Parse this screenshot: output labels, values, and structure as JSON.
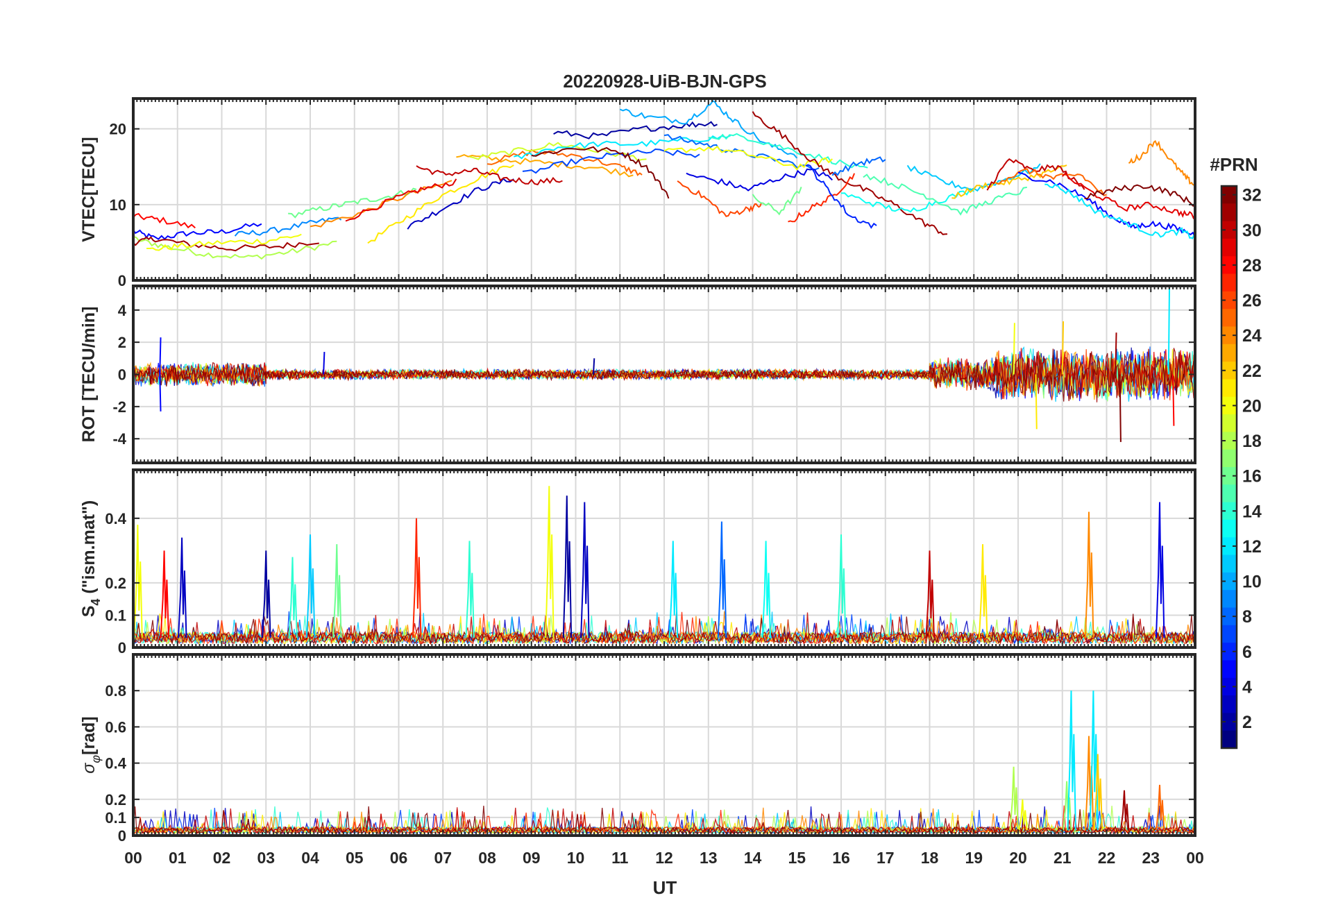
{
  "figure": {
    "title": "20220928-UiB-BJN-GPS",
    "xlabel": "UT",
    "x_tick_labels": [
      "00",
      "01",
      "02",
      "03",
      "04",
      "05",
      "06",
      "07",
      "08",
      "09",
      "10",
      "11",
      "12",
      "13",
      "14",
      "15",
      "16",
      "17",
      "18",
      "19",
      "20",
      "21",
      "22",
      "23",
      "00"
    ]
  },
  "colorbar": {
    "title": "#PRN",
    "range": [
      1,
      32
    ],
    "colormap": "jet",
    "ticks": [
      2,
      4,
      6,
      8,
      10,
      12,
      14,
      16,
      18,
      20,
      22,
      24,
      26,
      28,
      30,
      32
    ]
  },
  "chart_data": [
    {
      "type": "line",
      "panel": "vtec",
      "ylabel": "VTEC[TECU]",
      "xlim": [
        0,
        24
      ],
      "ylim": [
        0,
        24
      ],
      "yticks": [
        0,
        10,
        20
      ],
      "grid": true,
      "series": [
        {
          "prn": 5,
          "x": [
            0,
            0.5,
            1.2,
            2,
            2.9
          ],
          "y": [
            6.5,
            5.5,
            6.2,
            6.4,
            7.5
          ]
        },
        {
          "prn": 18,
          "x": [
            0,
            0.7,
            1.6,
            2.6,
            3.6,
            4.6
          ],
          "y": [
            5.5,
            4.5,
            3.5,
            3.0,
            3.8,
            5.0
          ]
        },
        {
          "prn": 28,
          "x": [
            0,
            0.6,
            1.4
          ],
          "y": [
            8.5,
            8.0,
            7.0
          ]
        },
        {
          "prn": 31,
          "x": [
            0,
            0.5,
            1.3,
            2.2,
            3.3,
            4.2
          ],
          "y": [
            5.0,
            5.5,
            4.7,
            4.2,
            4.5,
            5.2
          ]
        },
        {
          "prn": 20,
          "x": [
            0.3,
            1.0,
            2.0,
            3.0,
            3.8
          ],
          "y": [
            4.0,
            4.5,
            5.0,
            5.2,
            6.0
          ]
        },
        {
          "prn": 9,
          "x": [
            2.3,
            3.1,
            4.0,
            4.7
          ],
          "y": [
            6.0,
            6.5,
            7.5,
            8.3
          ]
        },
        {
          "prn": 16,
          "x": [
            3.5,
            4.3,
            5.0,
            5.7,
            6.4
          ],
          "y": [
            8.5,
            9.5,
            10.3,
            11.0,
            12.0
          ]
        },
        {
          "prn": 24,
          "x": [
            4.0,
            5.2,
            6.3,
            7.2
          ],
          "y": [
            7.0,
            9.0,
            11.5,
            13.0
          ]
        },
        {
          "prn": 29,
          "x": [
            4.8,
            5.8,
            6.5,
            7.3
          ],
          "y": [
            8.0,
            10.5,
            12.0,
            13.0
          ]
        },
        {
          "prn": 21,
          "x": [
            5.3,
            6.1,
            6.9,
            7.8,
            8.6
          ],
          "y": [
            5.0,
            8.0,
            11.0,
            13.5,
            15.5
          ]
        },
        {
          "prn": 3,
          "x": [
            6.2,
            7.0,
            7.8,
            8.6
          ],
          "y": [
            7.0,
            9.5,
            12.0,
            13.5
          ]
        },
        {
          "prn": 30,
          "x": [
            6.4,
            7.0,
            7.7,
            8.3,
            9.0,
            9.7
          ],
          "y": [
            15.0,
            14.0,
            14.5,
            13.5,
            13.0,
            13.2
          ]
        },
        {
          "prn": 23,
          "x": [
            7.3,
            8.2,
            9.3,
            10.3,
            11.3
          ],
          "y": [
            16.5,
            16.0,
            15.5,
            15.0,
            14.0
          ]
        },
        {
          "prn": 25,
          "x": [
            8.0,
            9.0,
            10.0,
            11.0,
            11.5
          ],
          "y": [
            15.5,
            17.0,
            16.5,
            15.0,
            14.0
          ]
        },
        {
          "prn": 19,
          "x": [
            7.6,
            8.6,
            9.6,
            10.6,
            11.6
          ],
          "y": [
            16.0,
            17.0,
            18.0,
            17.0,
            16.0
          ]
        },
        {
          "prn": 7,
          "x": [
            8.8,
            9.8,
            10.8,
            11.8,
            12.8
          ],
          "y": [
            14.0,
            15.5,
            16.5,
            17.0,
            16.5
          ]
        },
        {
          "prn": 12,
          "x": [
            8.6,
            9.5,
            10.5,
            11.5,
            12.5,
            13.5
          ],
          "y": [
            16.0,
            17.5,
            18.0,
            18.0,
            18.5,
            19.0
          ]
        },
        {
          "prn": 2,
          "x": [
            9.5,
            10.5,
            11.5,
            12.5,
            13.2
          ],
          "y": [
            19.5,
            19.0,
            20.0,
            20.5,
            20.8
          ]
        },
        {
          "prn": 32,
          "x": [
            9.0,
            10.0,
            11.0,
            11.6,
            12.1
          ],
          "y": [
            16.5,
            17.5,
            17.0,
            15.0,
            11.2
          ]
        },
        {
          "prn": 10,
          "x": [
            11.0,
            11.7,
            12.5,
            13.1,
            13.6,
            14.3,
            15.0
          ],
          "y": [
            22.5,
            21.5,
            21.0,
            23.5,
            21.0,
            18.0,
            16.5
          ]
        },
        {
          "prn": 8,
          "x": [
            12.0,
            12.9,
            13.6,
            14.5,
            15.5
          ],
          "y": [
            19.0,
            18.0,
            17.0,
            16.0,
            14.5
          ]
        },
        {
          "prn": 14,
          "x": [
            13.0,
            13.8,
            14.7,
            15.7,
            16.6
          ],
          "y": [
            19.0,
            19.0,
            17.5,
            16.0,
            14.5
          ]
        },
        {
          "prn": 20,
          "x": [
            12.0,
            13.0,
            14.0,
            15.0,
            15.8
          ],
          "y": [
            17.0,
            17.5,
            16.5,
            15.0,
            16.0
          ]
        },
        {
          "prn": 26,
          "x": [
            12.3,
            12.9,
            13.4,
            13.9,
            14.2
          ],
          "y": [
            13.0,
            11.0,
            8.5,
            9.5,
            10.0
          ]
        },
        {
          "prn": 4,
          "x": [
            12.5,
            13.3,
            13.9,
            14.6,
            15.3,
            15.8
          ],
          "y": [
            14.0,
            13.0,
            12.0,
            13.5,
            14.5,
            13.5
          ]
        },
        {
          "prn": 31,
          "x": [
            14.0,
            14.6,
            15.3,
            15.8,
            16.5,
            17.2,
            17.9,
            18.4
          ],
          "y": [
            22.0,
            19.5,
            16.0,
            14.0,
            12.0,
            10.0,
            7.5,
            6.0
          ]
        },
        {
          "prn": 16,
          "x": [
            14.0,
            14.6,
            15.1
          ],
          "y": [
            11.0,
            9.0,
            12.0
          ]
        },
        {
          "prn": 27,
          "x": [
            14.8,
            15.3,
            15.8,
            16.3
          ],
          "y": [
            7.5,
            9.5,
            11.0,
            14.0
          ]
        },
        {
          "prn": 6,
          "x": [
            15.2,
            15.7,
            16.2,
            16.8
          ],
          "y": [
            15.5,
            12.0,
            8.5,
            7.0
          ]
        },
        {
          "prn": 8,
          "x": [
            15.8,
            16.4,
            17.0
          ],
          "y": [
            14.0,
            15.5,
            16.0
          ]
        },
        {
          "prn": 13,
          "x": [
            16.0,
            16.8,
            17.5,
            18.2,
            19.0
          ],
          "y": [
            11.5,
            10.0,
            9.0,
            10.5,
            12.0
          ]
        },
        {
          "prn": 15,
          "x": [
            16.5,
            17.3,
            18.0,
            18.7,
            19.4,
            20.2
          ],
          "y": [
            14.0,
            12.5,
            11.0,
            9.0,
            10.5,
            12.0
          ]
        },
        {
          "prn": 11,
          "x": [
            17.5,
            18.3,
            19.0,
            19.8,
            20.5
          ],
          "y": [
            15.0,
            13.0,
            12.0,
            13.5,
            15.0
          ]
        },
        {
          "prn": 22,
          "x": [
            18.5,
            19.2,
            19.8,
            20.5,
            21.1
          ],
          "y": [
            11.0,
            12.5,
            13.0,
            14.0,
            15.0
          ]
        },
        {
          "prn": 30,
          "x": [
            19.3,
            19.8,
            20.3,
            20.9,
            21.5
          ],
          "y": [
            12.0,
            16.0,
            14.5,
            15.0,
            12.0
          ]
        },
        {
          "prn": 25,
          "x": [
            19.5,
            20.2,
            20.8,
            21.4,
            22.0
          ],
          "y": [
            13.0,
            14.5,
            13.5,
            14.0,
            11.0
          ]
        },
        {
          "prn": 5,
          "x": [
            20.0,
            20.8,
            21.5,
            22.1,
            22.6,
            23.0,
            23.5,
            24.0
          ],
          "y": [
            14.0,
            13.0,
            11.0,
            8.5,
            7.0,
            7.5,
            7.0,
            6.0
          ]
        },
        {
          "prn": 12,
          "x": [
            20.6,
            21.2,
            21.8,
            22.5,
            23.1,
            23.7,
            24.0
          ],
          "y": [
            13.0,
            11.5,
            9.0,
            7.5,
            6.0,
            6.5,
            5.5
          ]
        },
        {
          "prn": 29,
          "x": [
            21.0,
            21.7,
            22.4,
            23.0,
            23.6,
            24.0
          ],
          "y": [
            14.0,
            11.5,
            9.5,
            10.0,
            9.0,
            8.5
          ]
        },
        {
          "prn": 24,
          "x": [
            22.5,
            22.8,
            23.1,
            23.5,
            23.8,
            24.0
          ],
          "y": [
            15.5,
            16.5,
            18.5,
            15.5,
            13.5,
            12.5
          ]
        },
        {
          "prn": 32,
          "x": [
            21.5,
            22.2,
            22.9,
            23.5,
            24.0
          ],
          "y": [
            11.0,
            12.0,
            12.5,
            11.5,
            10.0
          ]
        }
      ]
    },
    {
      "type": "line",
      "panel": "rot",
      "ylabel": "ROT [TECU/min]",
      "xlim": [
        0,
        24
      ],
      "ylim": [
        -5.5,
        5.5
      ],
      "yticks": [
        -4,
        -2,
        0,
        2,
        4
      ],
      "grid": true,
      "noise_segments": [
        {
          "x_start": 0,
          "x_end": 3,
          "amplitude": 0.8
        },
        {
          "x_start": 3,
          "x_end": 18,
          "amplitude": 0.35
        },
        {
          "x_start": 18,
          "x_end": 19.5,
          "amplitude": 1.1
        },
        {
          "x_start": 19.5,
          "x_end": 24,
          "amplitude": 1.8
        }
      ],
      "peaks": [
        {
          "x": 0.6,
          "y": 2.3,
          "prn": 5
        },
        {
          "x": 0.6,
          "y": -2.3,
          "prn": 5
        },
        {
          "x": 4.3,
          "y": 1.4,
          "prn": 4
        },
        {
          "x": 10.4,
          "y": 1.0,
          "prn": 2
        },
        {
          "x": 19.9,
          "y": 3.2,
          "prn": 20
        },
        {
          "x": 20.4,
          "y": -3.4,
          "prn": 21
        },
        {
          "x": 21.0,
          "y": 3.3,
          "prn": 22
        },
        {
          "x": 22.2,
          "y": 2.6,
          "prn": 31
        },
        {
          "x": 22.3,
          "y": -4.2,
          "prn": 32
        },
        {
          "x": 23.4,
          "y": 5.5,
          "prn": 12
        },
        {
          "x": 23.5,
          "y": -3.2,
          "prn": 28
        }
      ]
    },
    {
      "type": "line",
      "panel": "s4",
      "ylabel": "S4 (\"ism.mat\")",
      "xlim": [
        0,
        24
      ],
      "ylim": [
        0,
        0.55
      ],
      "yticks": [
        0,
        0.1,
        0.2,
        0.4
      ],
      "grid": true,
      "baseline": 0.03,
      "peaks": [
        {
          "x": 0.1,
          "y": 0.38,
          "prn": 20
        },
        {
          "x": 0.7,
          "y": 0.3,
          "prn": 28
        },
        {
          "x": 1.1,
          "y": 0.34,
          "prn": 3
        },
        {
          "x": 3.0,
          "y": 0.3,
          "prn": 2
        },
        {
          "x": 3.6,
          "y": 0.28,
          "prn": 14
        },
        {
          "x": 4.0,
          "y": 0.35,
          "prn": 11
        },
        {
          "x": 4.6,
          "y": 0.32,
          "prn": 16
        },
        {
          "x": 6.4,
          "y": 0.4,
          "prn": 27
        },
        {
          "x": 7.6,
          "y": 0.33,
          "prn": 14
        },
        {
          "x": 9.4,
          "y": 0.5,
          "prn": 20
        },
        {
          "x": 9.8,
          "y": 0.47,
          "prn": 2
        },
        {
          "x": 10.2,
          "y": 0.45,
          "prn": 3
        },
        {
          "x": 12.2,
          "y": 0.33,
          "prn": 12
        },
        {
          "x": 13.3,
          "y": 0.39,
          "prn": 8
        },
        {
          "x": 14.3,
          "y": 0.33,
          "prn": 13
        },
        {
          "x": 16.0,
          "y": 0.35,
          "prn": 14
        },
        {
          "x": 18.0,
          "y": 0.3,
          "prn": 30
        },
        {
          "x": 19.2,
          "y": 0.32,
          "prn": 21
        },
        {
          "x": 21.6,
          "y": 0.42,
          "prn": 24
        },
        {
          "x": 23.2,
          "y": 0.45,
          "prn": 4
        }
      ]
    },
    {
      "type": "line",
      "panel": "sigma_phi",
      "ylabel": "σφ[rad]",
      "xlim": [
        0,
        24
      ],
      "ylim": [
        0,
        1.0
      ],
      "yticks": [
        0,
        0.1,
        0.2,
        0.4,
        0.6,
        0.8
      ],
      "grid": true,
      "baseline": 0.03,
      "peaks": [
        {
          "x": 19.9,
          "y": 0.38,
          "prn": 18
        },
        {
          "x": 20.1,
          "y": 0.2,
          "prn": 20
        },
        {
          "x": 21.1,
          "y": 0.3,
          "prn": 17
        },
        {
          "x": 21.2,
          "y": 0.8,
          "prn": 12
        },
        {
          "x": 21.6,
          "y": 0.55,
          "prn": 24
        },
        {
          "x": 21.7,
          "y": 0.8,
          "prn": 12
        },
        {
          "x": 21.8,
          "y": 0.45,
          "prn": 22
        },
        {
          "x": 22.4,
          "y": 0.25,
          "prn": 31
        },
        {
          "x": 23.2,
          "y": 0.28,
          "prn": 25
        }
      ]
    }
  ]
}
